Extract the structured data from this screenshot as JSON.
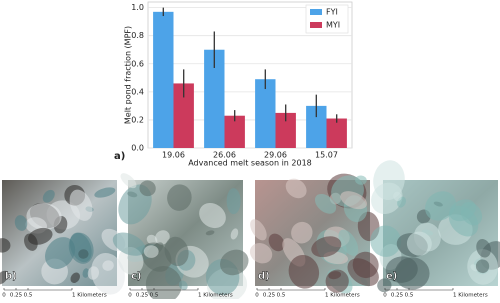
{
  "chart_data": {
    "type": "bar",
    "panel_label": "a)",
    "x_label": "Advanced melt season in 2018",
    "y_label": "Melt pond fraction (MPF)",
    "categories": [
      "19.06",
      "26.06",
      "29.06",
      "15.07"
    ],
    "series": [
      {
        "name": "FYI",
        "color": "#4da3e8",
        "values": [
          0.97,
          0.7,
          0.49,
          0.3
        ],
        "errors": [
          0.03,
          0.13,
          0.07,
          0.08
        ]
      },
      {
        "name": "MYI",
        "color": "#cc3a5c",
        "values": [
          0.46,
          0.23,
          0.25,
          0.21
        ],
        "errors": [
          0.1,
          0.04,
          0.06,
          0.03
        ]
      }
    ],
    "ylim": [
      0,
      1.04
    ],
    "yticks": [
      {
        "value": 0,
        "label": "0.0"
      },
      0.2,
      0.4,
      0.6,
      0.8,
      {
        "value": 1,
        "label": "1.0"
      }
    ],
    "grid": true,
    "legend": "upper right"
  },
  "panels": [
    {
      "label": "b)",
      "scale_labels": [
        "0",
        "0.25",
        "0.5",
        "1 Kilometers"
      ]
    },
    {
      "label": "c)",
      "scale_labels": [
        "0",
        "0.25",
        "0.5",
        "1 Kilometers"
      ]
    },
    {
      "label": "d)",
      "scale_labels": [
        "0",
        "0.25",
        "0.5",
        "1 Kilometers"
      ]
    },
    {
      "label": "e)",
      "scale_labels": [
        "0",
        "0.25",
        "0.5",
        "1 Kilometers"
      ]
    }
  ]
}
